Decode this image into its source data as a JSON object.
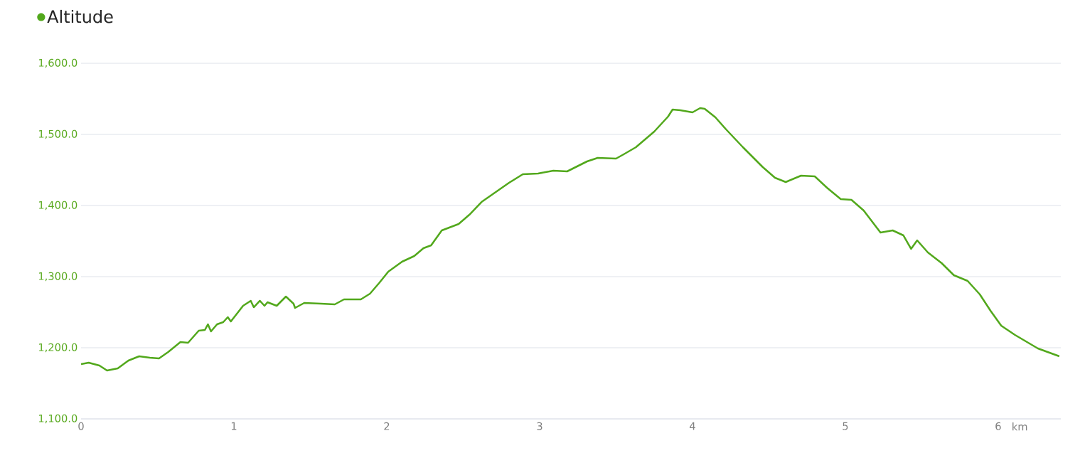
{
  "chart_data": {
    "type": "line",
    "xlabel": "km",
    "legend": "top left",
    "grid": "y",
    "marker": "none",
    "line_style": "solid",
    "xlim": [
      0,
      6.41
    ],
    "ylim": [
      1100,
      1600
    ],
    "xticks": [
      0,
      1,
      2,
      3,
      4,
      5,
      6
    ],
    "yticks": [
      {
        "value": 1100,
        "label": "1,100.0"
      },
      {
        "value": 1200,
        "label": "1,200.0"
      },
      {
        "value": 1300,
        "label": "1,300.0"
      },
      {
        "value": 1400,
        "label": "1,400.0"
      },
      {
        "value": 1500,
        "label": "1,500.0"
      },
      {
        "value": 1600,
        "label": "1,600.0"
      }
    ],
    "series": [
      {
        "name": "Altitude",
        "color": "#52a81c",
        "x": [
          0.0,
          0.05,
          0.12,
          0.17,
          0.24,
          0.31,
          0.38,
          0.45,
          0.51,
          0.57,
          0.65,
          0.7,
          0.77,
          0.81,
          0.83,
          0.85,
          0.89,
          0.93,
          0.96,
          0.98,
          1.06,
          1.11,
          1.13,
          1.17,
          1.2,
          1.22,
          1.28,
          1.34,
          1.39,
          1.4,
          1.46,
          1.57,
          1.66,
          1.72,
          1.83,
          1.89,
          1.95,
          2.01,
          2.1,
          2.18,
          2.24,
          2.29,
          2.36,
          2.47,
          2.54,
          2.62,
          2.7,
          2.8,
          2.89,
          2.99,
          3.09,
          3.18,
          3.31,
          3.38,
          3.5,
          3.55,
          3.63,
          3.75,
          3.84,
          3.87,
          3.92,
          4.0,
          4.05,
          4.08,
          4.15,
          4.22,
          4.33,
          4.46,
          4.54,
          4.61,
          4.71,
          4.8,
          4.88,
          4.97,
          5.04,
          5.12,
          5.23,
          5.31,
          5.38,
          5.43,
          5.47,
          5.54,
          5.63,
          5.71,
          5.8,
          5.88,
          5.95,
          6.02,
          6.11,
          6.26,
          6.4
        ],
        "values": [
          1177,
          1179,
          1175,
          1168,
          1171,
          1182,
          1188,
          1186,
          1185,
          1194,
          1208,
          1207,
          1224,
          1225,
          1233,
          1223,
          1233,
          1236,
          1243,
          1237,
          1259,
          1266,
          1257,
          1266,
          1259,
          1264,
          1259,
          1272,
          1262,
          1256,
          1263,
          1262,
          1261,
          1268,
          1268,
          1276,
          1291,
          1307,
          1321,
          1329,
          1340,
          1344,
          1365,
          1374,
          1387,
          1405,
          1417,
          1432,
          1444,
          1445,
          1449,
          1448,
          1462,
          1467,
          1466,
          1472,
          1482,
          1504,
          1525,
          1535,
          1534,
          1531,
          1537,
          1536,
          1524,
          1507,
          1482,
          1454,
          1439,
          1433,
          1442,
          1441,
          1425,
          1409,
          1408,
          1393,
          1362,
          1365,
          1358,
          1339,
          1351,
          1334,
          1319,
          1302,
          1294,
          1275,
          1252,
          1231,
          1218,
          1199,
          1188
        ]
      }
    ]
  }
}
